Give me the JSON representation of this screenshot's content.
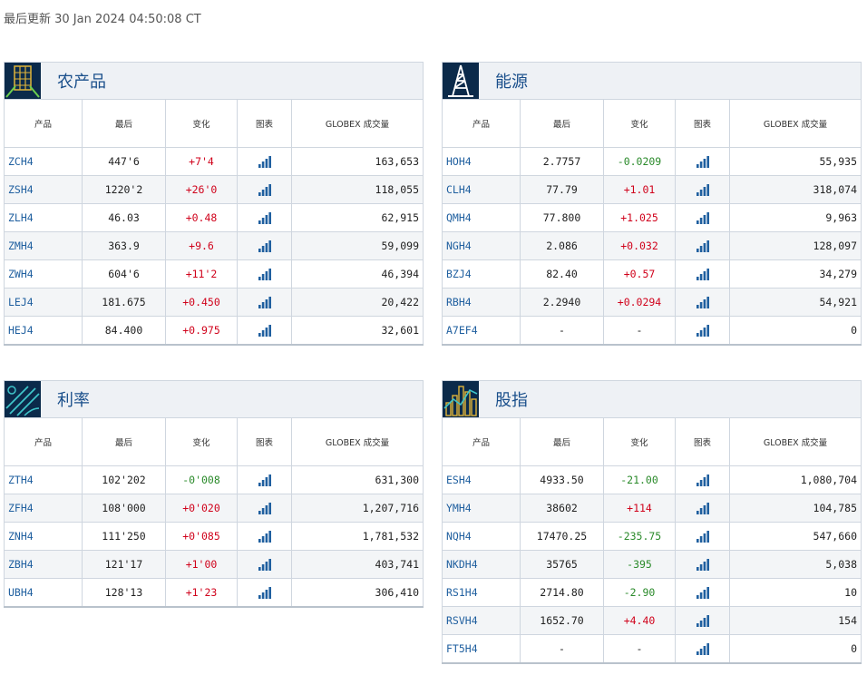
{
  "last_updated": "最后更新 30 Jan 2024 04:50:08 CT",
  "columns": {
    "product": "产品",
    "last": "最后",
    "change": "变化",
    "chart": "图表",
    "volume": "GLOBEX 成交量"
  },
  "colors": {
    "up": "#d0021b",
    "down": "#2a8a2a",
    "symbol": "#1f5f9f",
    "title": "#1a4f8b",
    "icon_bg": "#0b2a4a"
  },
  "panels": {
    "agri": {
      "title": "农产品",
      "icon": "wheat-grain-icon",
      "rows": [
        {
          "symbol": "ZCH4",
          "last": "447'6",
          "change": "+7'4",
          "dir": "up",
          "volume": "163,653"
        },
        {
          "symbol": "ZSH4",
          "last": "1220'2",
          "change": "+26'0",
          "dir": "up",
          "volume": "118,055"
        },
        {
          "symbol": "ZLH4",
          "last": "46.03",
          "change": "+0.48",
          "dir": "up",
          "volume": "62,915"
        },
        {
          "symbol": "ZMH4",
          "last": "363.9",
          "change": "+9.6",
          "dir": "up",
          "volume": "59,099"
        },
        {
          "symbol": "ZWH4",
          "last": "604'6",
          "change": "+11'2",
          "dir": "up",
          "volume": "46,394"
        },
        {
          "symbol": "LEJ4",
          "last": "181.675",
          "change": "+0.450",
          "dir": "up",
          "volume": "20,422"
        },
        {
          "symbol": "HEJ4",
          "last": "84.400",
          "change": "+0.975",
          "dir": "up",
          "volume": "32,601"
        }
      ]
    },
    "energy": {
      "title": "能源",
      "icon": "oil-derrick-icon",
      "rows": [
        {
          "symbol": "HOH4",
          "last": "2.7757",
          "change": "-0.0209",
          "dir": "down",
          "volume": "55,935"
        },
        {
          "symbol": "CLH4",
          "last": "77.79",
          "change": "+1.01",
          "dir": "up",
          "volume": "318,074"
        },
        {
          "symbol": "QMH4",
          "last": "77.800",
          "change": "+1.025",
          "dir": "up",
          "volume": "9,963"
        },
        {
          "symbol": "NGH4",
          "last": "2.086",
          "change": "+0.032",
          "dir": "up",
          "volume": "128,097"
        },
        {
          "symbol": "BZJ4",
          "last": "82.40",
          "change": "+0.57",
          "dir": "up",
          "volume": "34,279"
        },
        {
          "symbol": "RBH4",
          "last": "2.2940",
          "change": "+0.0294",
          "dir": "up",
          "volume": "54,921"
        },
        {
          "symbol": "A7EF4",
          "last": "-",
          "change": "-",
          "dir": "flat",
          "volume": "0"
        }
      ]
    },
    "rates": {
      "title": "利率",
      "icon": "interest-rate-icon",
      "rows": [
        {
          "symbol": "ZTH4",
          "last": "102'202",
          "change": "-0'008",
          "dir": "down",
          "volume": "631,300"
        },
        {
          "symbol": "ZFH4",
          "last": "108'000",
          "change": "+0'020",
          "dir": "up",
          "volume": "1,207,716"
        },
        {
          "symbol": "ZNH4",
          "last": "111'250",
          "change": "+0'085",
          "dir": "up",
          "volume": "1,781,532"
        },
        {
          "symbol": "ZBH4",
          "last": "121'17",
          "change": "+1'00",
          "dir": "up",
          "volume": "403,741"
        },
        {
          "symbol": "UBH4",
          "last": "128'13",
          "change": "+1'23",
          "dir": "up",
          "volume": "306,410"
        }
      ]
    },
    "equity": {
      "title": "股指",
      "icon": "stock-index-icon",
      "rows": [
        {
          "symbol": "ESH4",
          "last": "4933.50",
          "change": "-21.00",
          "dir": "down",
          "volume": "1,080,704"
        },
        {
          "symbol": "YMH4",
          "last": "38602",
          "change": "+114",
          "dir": "up",
          "volume": "104,785"
        },
        {
          "symbol": "NQH4",
          "last": "17470.25",
          "change": "-235.75",
          "dir": "down",
          "volume": "547,660"
        },
        {
          "symbol": "NKDH4",
          "last": "35765",
          "change": "-395",
          "dir": "down",
          "volume": "5,038"
        },
        {
          "symbol": "RS1H4",
          "last": "2714.80",
          "change": "-2.90",
          "dir": "down",
          "volume": "10"
        },
        {
          "symbol": "RSVH4",
          "last": "1652.70",
          "change": "+4.40",
          "dir": "up",
          "volume": "154"
        },
        {
          "symbol": "FT5H4",
          "last": "-",
          "change": "-",
          "dir": "flat",
          "volume": "0"
        }
      ]
    }
  }
}
